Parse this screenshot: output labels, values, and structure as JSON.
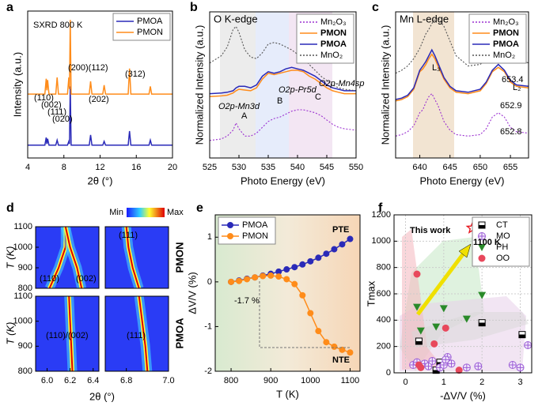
{
  "chart_data": [
    {
      "type": "line",
      "panel_label": "a",
      "xlabel": "2θ (°)",
      "ylabel": "Intensity (a.u.)",
      "xlim": [
        4,
        20
      ],
      "xticks": [
        4,
        8,
        12,
        16,
        20
      ],
      "ylim": [
        0,
        11.5
      ],
      "legend": "upper right",
      "annotations": [
        "SXRD  800 K",
        "(110)",
        "(002)",
        "(111)",
        "(020)",
        "(200)(112)",
        "(202)",
        "(312)"
      ],
      "x": [
        4,
        5.9,
        6.05,
        6.12,
        6.2,
        6.35,
        7.1,
        7.25,
        7.4,
        8.4,
        8.55,
        8.62,
        8.7,
        8.8,
        10.8,
        10.95,
        11.1,
        12.3,
        12.45,
        12.6,
        15.1,
        15.25,
        15.4,
        17.4,
        17.55,
        17.7,
        20
      ],
      "series": [
        {
          "name": "PMOA",
          "color": "#2a2ab8",
          "linestyle": "solid",
          "values": [
            1,
            1,
            1.6,
            1.1,
            1.5,
            1,
            1,
            1.4,
            1,
            1,
            1.3,
            1.1,
            5.6,
            1,
            1,
            1.8,
            1,
            1,
            1.3,
            1,
            1,
            2.1,
            1,
            1,
            1.4,
            1,
            1
          ]
        },
        {
          "name": "PMON",
          "color": "#ff8c1a",
          "linestyle": "solid",
          "values": [
            5,
            5,
            6.2,
            5.3,
            6.1,
            5,
            5,
            6.3,
            5,
            5,
            6.3,
            5.4,
            10.8,
            5,
            5,
            6,
            5,
            5,
            5.7,
            5,
            5,
            7,
            5,
            5,
            5.6,
            5,
            5
          ]
        }
      ]
    },
    {
      "type": "line",
      "panel_label": "b",
      "title": "O K-edge",
      "xlabel": "Photo Energy (eV)",
      "ylabel": "Normalized Intensity (a.u.)",
      "xlim": [
        525,
        550
      ],
      "xticks": [
        525,
        530,
        535,
        540,
        545,
        550
      ],
      "ylim": [
        0,
        10
      ],
      "legend": "upper right",
      "annotations": [
        "O2p-Mn3d",
        "A",
        "O2p-Pr5d",
        "B",
        "O2p-Mn4sp",
        "C"
      ],
      "x": [
        525,
        527,
        528,
        529,
        529.5,
        530,
        531,
        532,
        533,
        534,
        535,
        536,
        537,
        538,
        539,
        540,
        541,
        542,
        543,
        544,
        545,
        546,
        547,
        548,
        550
      ],
      "series": [
        {
          "name": "Mn₂O₃",
          "color": "#9b30d0",
          "linestyle": "dotted",
          "values": [
            1.2,
            1.3,
            1.5,
            1.9,
            2.4,
            2,
            1.5,
            1.5,
            1.7,
            2.1,
            2.5,
            2.7,
            2.8,
            3,
            3.2,
            3.3,
            3.3,
            3.2,
            3.1,
            2.9,
            2.6,
            2.3,
            2.1,
            2,
            1.9
          ]
        },
        {
          "name": "PMON",
          "color": "#ff8c1a",
          "linestyle": "solid",
          "values": [
            4.2,
            4.25,
            4.3,
            4.45,
            4.6,
            4.7,
            4.65,
            4.6,
            4.8,
            5.4,
            5.8,
            5.7,
            5.8,
            5.9,
            6,
            6,
            5.9,
            5.6,
            5.4,
            5.1,
            4.8,
            4.6,
            4.5,
            4.4,
            4.4
          ]
        },
        {
          "name": "PMOA",
          "color": "#2a2ab8",
          "linestyle": "solid",
          "values": [
            4.4,
            4.45,
            4.5,
            4.6,
            4.8,
            4.9,
            4.9,
            4.8,
            5,
            5.6,
            5.9,
            5.8,
            5.9,
            6.1,
            6.2,
            6.1,
            6,
            5.8,
            5.6,
            5.3,
            5,
            4.8,
            4.7,
            4.6,
            4.6
          ]
        },
        {
          "name": "MnO₂",
          "color": "#555555",
          "linestyle": "dotted",
          "values": [
            6.5,
            7,
            7.6,
            8.8,
            9,
            8.6,
            7.4,
            6.9,
            6.8,
            7.2,
            7.8,
            7.9,
            7.8,
            7.6,
            7.4,
            7.1,
            6.8,
            6.4,
            6,
            5.6,
            5.3,
            5,
            4.8,
            4.7,
            4.6
          ]
        }
      ]
    },
    {
      "type": "line",
      "panel_label": "c",
      "title": "Mn L-edge",
      "xlabel": "Photo Energy (eV)",
      "ylabel": "Normalized Intensity (a.u.)",
      "xlim": [
        636,
        658
      ],
      "xticks": [
        640,
        645,
        650,
        655
      ],
      "ylim": [
        0,
        10
      ],
      "legend": "upper right",
      "annotations": [
        "L₃",
        "L₂",
        "653.4",
        "652.9",
        "652.8"
      ],
      "x": [
        636,
        637,
        638,
        639,
        640,
        640.5,
        641,
        641.5,
        642,
        642.5,
        643,
        644,
        645,
        646,
        648,
        650,
        651,
        652,
        653,
        654,
        655,
        656,
        658
      ],
      "series": [
        {
          "name": "Mn₂O₃",
          "color": "#9b30d0",
          "linestyle": "dotted",
          "values": [
            1.5,
            1.6,
            1.8,
            2.2,
            3.1,
            3.3,
            3.8,
            4.2,
            4.4,
            4,
            3.6,
            2.5,
            1.9,
            1.6,
            1.5,
            1.6,
            2,
            2.8,
            3.1,
            2.8,
            2.1,
            1.8,
            1.7
          ]
        },
        {
          "name": "PMON",
          "color": "#ff8c1a",
          "linestyle": "solid",
          "values": [
            3.9,
            4,
            4.2,
            4.7,
            5.9,
            6.1,
            6.4,
            6.8,
            7.1,
            6.8,
            6.3,
            5.4,
            4.8,
            4.5,
            4.4,
            4.6,
            5.1,
            5.9,
            6.2,
            5.9,
            5.2,
            4.9,
            4.8
          ]
        },
        {
          "name": "PMOA",
          "color": "#2a2ab8",
          "linestyle": "solid",
          "values": [
            4,
            4.1,
            4.3,
            4.8,
            6,
            6.3,
            6.6,
            7,
            7.4,
            7,
            6.5,
            5.5,
            4.9,
            4.6,
            4.5,
            4.7,
            5.2,
            6,
            6.4,
            6,
            5.3,
            5,
            4.9
          ]
        },
        {
          "name": "MnO₂",
          "color": "#555555",
          "linestyle": "dotted",
          "values": [
            5.8,
            6,
            6.3,
            6.8,
            7.5,
            8,
            8.5,
            8.8,
            9.2,
            9.5,
            9.6,
            9,
            8,
            7,
            6.3,
            6.4,
            6.8,
            7.5,
            8,
            7.8,
            7.2,
            6.8,
            6.5
          ]
        }
      ]
    },
    {
      "type": "heatmap",
      "panel_label": "d",
      "xlabel": "2θ (°)",
      "ylabel": "T (K)",
      "colorbar": [
        "Min",
        "Max"
      ],
      "row_labels": [
        "PMON",
        "PMOA"
      ],
      "subplots": [
        {
          "xlim": [
            5.9,
            6.45
          ],
          "ylim": [
            800,
            1100
          ],
          "yticks": [
            800,
            900,
            1000,
            1100
          ],
          "ridges": [
            {
              "name": "(110)",
              "x": [
                6.16,
                6.16,
                6.1,
                6.02
              ],
              "values": [
                1100,
                1000,
                900,
                800
              ]
            },
            {
              "name": "(002)",
              "x": [
                6.16,
                6.2,
                6.26,
                6.3
              ],
              "values": [
                1100,
                1000,
                900,
                800
              ]
            }
          ]
        },
        {
          "xlim": [
            6.7,
            7.0
          ],
          "ylim": [
            800,
            1100
          ],
          "ridges": [
            {
              "name": "(111)",
              "x": [
                6.8,
                6.81,
                6.83,
                6.86
              ],
              "values": [
                1100,
                1000,
                900,
                800
              ]
            }
          ]
        },
        {
          "xlim": [
            5.9,
            6.45
          ],
          "ylim": [
            800,
            1100
          ],
          "yticks": [
            800,
            900,
            1000,
            1100
          ],
          "xticks": [
            {
              "value": 6,
              "label": "6.0"
            },
            6.2,
            6.4
          ],
          "ridges": [
            {
              "name": "(110)/(002)",
              "x": [
                6.19,
                6.2,
                6.21,
                6.22
              ],
              "values": [
                1100,
                1000,
                900,
                800
              ]
            }
          ]
        },
        {
          "xlim": [
            6.7,
            7.0
          ],
          "ylim": [
            800,
            1100
          ],
          "xticks": [
            6.8,
            {
              "value": 7,
              "label": "7.0"
            }
          ],
          "ridges": [
            {
              "name": "(111)",
              "x": [
                6.86,
                6.875,
                6.89,
                6.9
              ],
              "values": [
                1100,
                1000,
                900,
                800
              ]
            }
          ]
        }
      ]
    },
    {
      "type": "line",
      "panel_label": "e",
      "xlabel": "T (K)",
      "ylabel": "ΔV/V (%)",
      "xlim": [
        760,
        1125
      ],
      "xticks": [
        800,
        900,
        1000,
        1100
      ],
      "ylim": [
        -2,
        1.5
      ],
      "yticks": [
        -2,
        -1,
        0,
        1
      ],
      "legend": "upper left",
      "markers": true,
      "annotations": [
        "-1.7 %",
        "PTE",
        "NTE"
      ],
      "x": [
        800,
        820,
        840,
        860,
        880,
        900,
        920,
        940,
        960,
        980,
        1000,
        1020,
        1040,
        1060,
        1080,
        1100
      ],
      "series": [
        {
          "name": "PMOA",
          "color": "#2a2ab8",
          "linestyle": "solid",
          "values": [
            0,
            0.03,
            0.07,
            0.1,
            0.14,
            0.18,
            0.23,
            0.28,
            0.33,
            0.39,
            0.46,
            0.54,
            0.63,
            0.73,
            0.84,
            0.96
          ]
        },
        {
          "name": "PMON",
          "color": "#ff8c1a",
          "linestyle": "solid",
          "values": [
            0,
            0.02,
            0.06,
            0.1,
            0.13,
            0.14,
            0.12,
            0.06,
            -0.05,
            -0.3,
            -0.7,
            -1.1,
            -1.35,
            -1.45,
            -1.52,
            -1.58
          ]
        }
      ]
    },
    {
      "type": "scatter",
      "panel_label": "f",
      "xlabel": "-ΔV/V (%)",
      "ylabel": "Tmax",
      "xlim": [
        -0.3,
        3.3
      ],
      "xticks": [
        0,
        1,
        2,
        3
      ],
      "ylim": [
        0,
        1200
      ],
      "yticks": [
        0,
        200,
        400,
        600,
        800,
        1000,
        1200
      ],
      "legend": "upper right",
      "grid": true,
      "annotations": [
        "This work",
        "1100 K"
      ],
      "highlight": {
        "x": 1.75,
        "y": 1100,
        "color": "#e8141c"
      },
      "series": [
        {
          "name": "CT",
          "color": "#000000",
          "marker": "square-half",
          "x": [
            0.35,
            0.9,
            0.8,
            2.0,
            3.05
          ],
          "values": [
            240,
            80,
            20,
            380,
            290
          ]
        },
        {
          "name": "MO",
          "color": "#9b5cd6",
          "marker": "circle-plus",
          "x": [
            0.2,
            0.3,
            0.5,
            0.6,
            0.7,
            0.9,
            1.0,
            1.1,
            1.05,
            1.2,
            1.6,
            1.9,
            2.8,
            3.0,
            3.2
          ],
          "values": [
            60,
            80,
            70,
            50,
            90,
            40,
            60,
            120,
            100,
            70,
            40,
            50,
            60,
            40,
            210
          ]
        },
        {
          "name": "PH",
          "color": "#2a8a2a",
          "marker": "triangle-down",
          "x": [
            0.3,
            0.4,
            0.8,
            1.0,
            1.6,
            2.0
          ],
          "values": [
            500,
            320,
            350,
            490,
            410,
            590
          ]
        },
        {
          "name": "OO",
          "color": "#e8485c",
          "marker": "circle",
          "x": [
            0.3,
            0.35,
            0.4,
            0.75,
            1.05,
            1.4
          ],
          "values": [
            750,
            60,
            40,
            220,
            340,
            20
          ]
        }
      ]
    }
  ]
}
